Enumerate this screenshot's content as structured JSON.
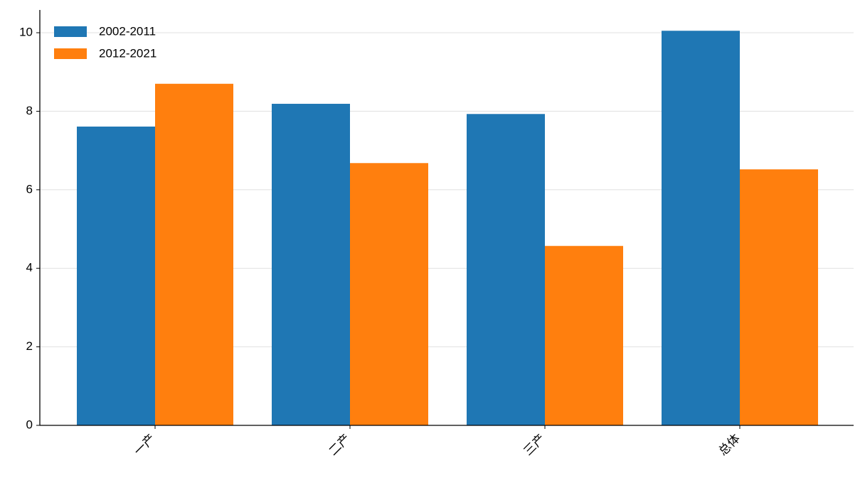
{
  "chart_data": {
    "type": "bar",
    "categories": [
      "一产",
      "二产",
      "三产",
      "总体"
    ],
    "series": [
      {
        "name": "2002-2011",
        "color": "#1f77b4",
        "values": [
          7.61,
          8.19,
          7.93,
          10.05
        ]
      },
      {
        "name": "2012-2021",
        "color": "#ff7f0e",
        "values": [
          8.7,
          6.68,
          4.57,
          6.52
        ]
      }
    ],
    "ylim": [
      0,
      10.58
    ],
    "yticks": [
      0,
      2,
      4,
      6,
      8,
      10
    ],
    "grid": true,
    "legend": "upper left"
  }
}
